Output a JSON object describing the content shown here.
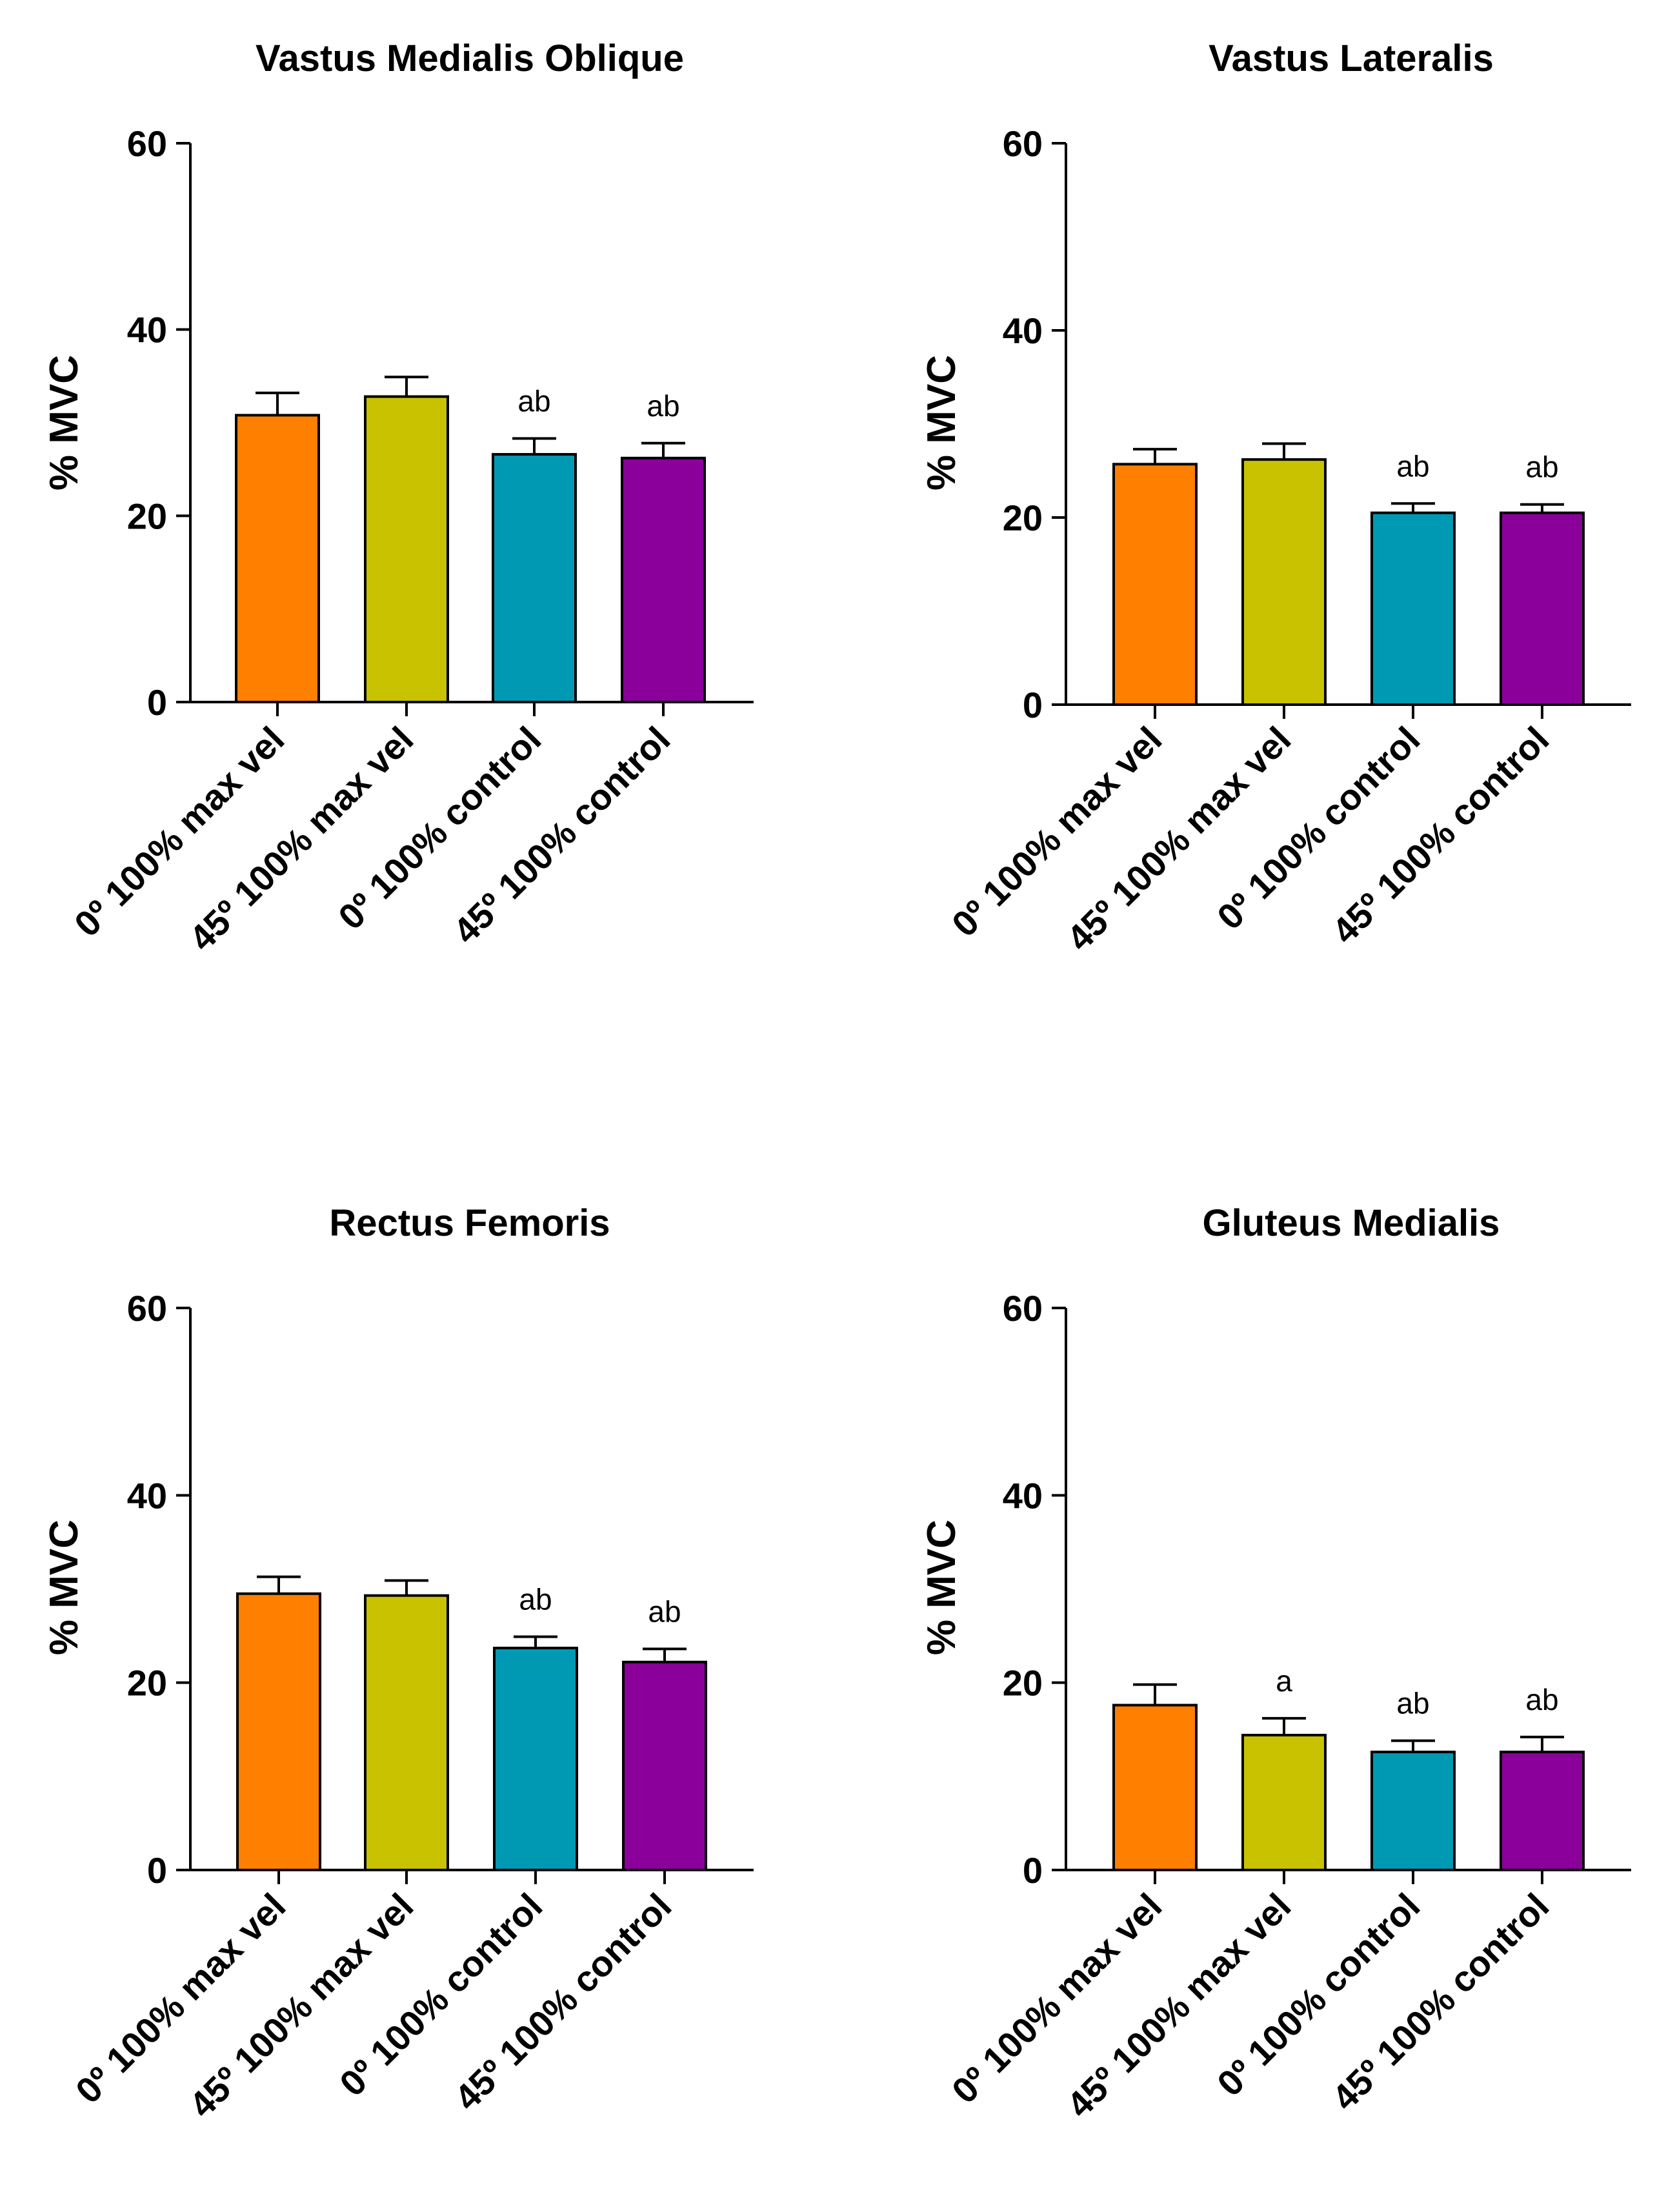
{
  "chart_data": [
    {
      "type": "bar",
      "title": "Vastus Medialis Oblique",
      "ylabel": "% MVC",
      "xlabel": "",
      "ylim": [
        0,
        60
      ],
      "yticks": [
        0,
        20,
        40,
        60
      ],
      "categories": [
        "0º 100% max vel",
        "45º 100% max vel",
        "0º 100%  control",
        "45º 100% control"
      ],
      "values": [
        30.8,
        32.8,
        26.6,
        26.2
      ],
      "errors": [
        2.4,
        2.1,
        1.7,
        1.6
      ],
      "annotations": [
        "",
        "",
        "ab",
        "ab"
      ],
      "colors": [
        "#FF7F00",
        "#C8C200",
        "#0099B4",
        "#8B009B"
      ]
    },
    {
      "type": "bar",
      "title": "Vastus Lateralis",
      "ylabel": "% MVC",
      "xlabel": "",
      "ylim": [
        0,
        60
      ],
      "yticks": [
        0,
        20,
        40,
        60
      ],
      "categories": [
        "0º 100% max vel",
        "45º 100% max vel",
        "0º 100%  control",
        "45º 100% control"
      ],
      "values": [
        25.7,
        26.2,
        20.5,
        20.5
      ],
      "errors": [
        1.6,
        1.7,
        1.0,
        0.9
      ],
      "annotations": [
        "",
        "",
        "ab",
        "ab"
      ],
      "colors": [
        "#FF7F00",
        "#C8C200",
        "#0099B4",
        "#8B009B"
      ]
    },
    {
      "type": "bar",
      "title": "Rectus Femoris",
      "ylabel": "% MVC",
      "xlabel": "",
      "ylim": [
        0,
        60
      ],
      "yticks": [
        0,
        20,
        40,
        60
      ],
      "categories": [
        "0º 100% max vel",
        "45º 100% max vel",
        "0º 100%  control",
        "45º 100% control"
      ],
      "values": [
        29.5,
        29.3,
        23.7,
        22.2
      ],
      "errors": [
        1.8,
        1.6,
        1.2,
        1.4
      ],
      "annotations": [
        "",
        "",
        "ab",
        "ab"
      ],
      "colors": [
        "#FF7F00",
        "#C8C200",
        "#0099B4",
        "#8B009B"
      ]
    },
    {
      "type": "bar",
      "title": "Gluteus Medialis",
      "ylabel": "% MVC",
      "xlabel": "",
      "ylim": [
        0,
        60
      ],
      "yticks": [
        0,
        20,
        40,
        60
      ],
      "categories": [
        "0º 100% max vel",
        "45º 100% max vel",
        "0º 100%  control",
        "45º 100% control"
      ],
      "values": [
        17.6,
        14.4,
        12.6,
        12.6
      ],
      "errors": [
        2.2,
        1.8,
        1.2,
        1.6
      ],
      "annotations": [
        "",
        "a",
        "ab",
        "ab"
      ],
      "colors": [
        "#FF7F00",
        "#C8C200",
        "#0099B4",
        "#8B009B"
      ]
    }
  ]
}
